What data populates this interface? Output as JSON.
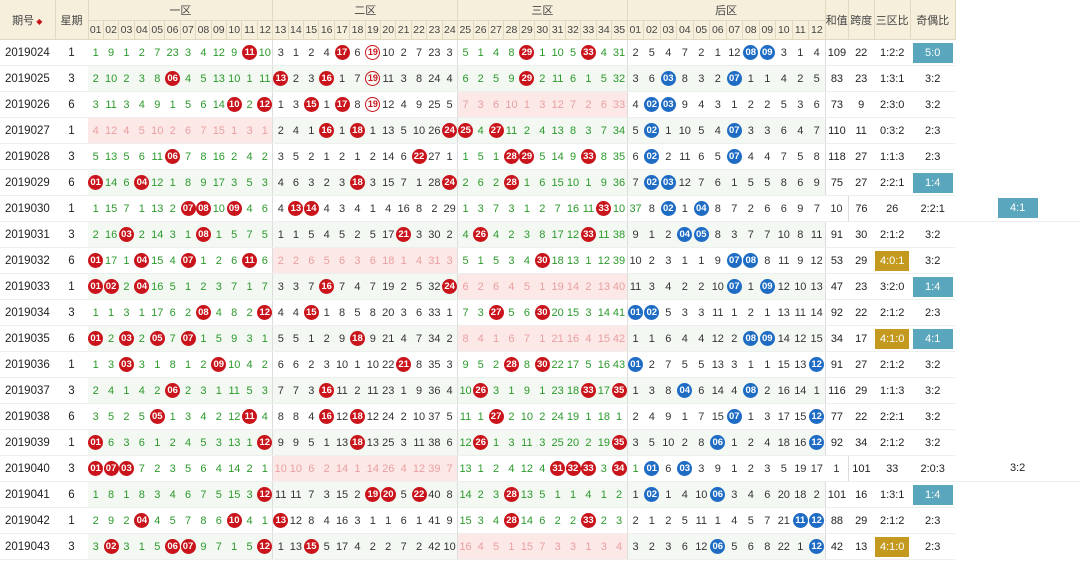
{
  "headers": {
    "period": "期号",
    "week": "星期",
    "zone1": "一区",
    "zone2": "二区",
    "zone3": "三区",
    "back": "后区",
    "sum": "和值",
    "span": "跨度",
    "zone_ratio": "三区比",
    "odd_even": "奇偶比"
  },
  "front_numbers": [
    "01",
    "02",
    "03",
    "04",
    "05",
    "06",
    "07",
    "08",
    "09",
    "10",
    "11",
    "12",
    "13",
    "14",
    "15",
    "16",
    "17",
    "18",
    "19",
    "20",
    "21",
    "22",
    "23",
    "24",
    "25",
    "26",
    "27",
    "28",
    "29",
    "30",
    "31",
    "32",
    "33",
    "34",
    "35"
  ],
  "back_numbers": [
    "01",
    "02",
    "03",
    "04",
    "05",
    "06",
    "07",
    "08",
    "09",
    "10",
    "11",
    "12"
  ],
  "colors": {
    "red_ball": "#c9141b",
    "blue_ball": "#1f6cc4",
    "gold_badge": "#c39a1e",
    "teal_badge": "#5aa6bc",
    "header_bg": "#f6efdc"
  },
  "rows": [
    {
      "period": "2019024",
      "week": "1",
      "front": "1 9 1 2 7 23 3 4 12 9 R11 10 3 1 2 4 R17 6 O19 10 2 7 23 3 5 1 4 8 R29 1 10 5 R33 4 31",
      "back": "2 5 4 7 2 1 12 B08 B09 3 1 4",
      "sum": "109",
      "span": "22",
      "ratio": "1:2:2",
      "oe": "5:0",
      "oe_badge": "teal"
    },
    {
      "period": "2019025",
      "week": "3",
      "front": "2 10 2 3 8 R06 4 5 13 10 1 11 R13 2 3 R16 1 7 O19 11 3 8 24 4 6 2 5 9 R29 2 11 6 1 5 32",
      "back": "3 6 B03 8 3 2 B07 1 1 4 2 5",
      "sum": "83",
      "span": "23",
      "ratio": "1:3:1",
      "oe": "3:2"
    },
    {
      "period": "2019026",
      "week": "6",
      "front": "3 11 3 4 9 1 5 6 14 R10 2 R12 1 3 R15 1 R17 8 O19 12 4 9 25 5 7 3 6 10 1 3 12 7 2 6 33",
      "back": "4 B02 B03 9 4 3 1 2 2 5 3 6",
      "sum": "73",
      "span": "9",
      "ratio": "2:3:0",
      "oe": "3:2",
      "fade": 3
    },
    {
      "period": "2019027",
      "week": "1",
      "front": "4 12 4 5 10 2 6 7 15 1 3 1 2 4 1 R16 1 R18 1 13 5 10 26 R24 R25 4 R27 11 2 4 13 8 3 7 34",
      "back": "5 B02 1 10 5 4 B07 3 3 6 4 7",
      "sum": "110",
      "span": "11",
      "ratio": "0:3:2",
      "oe": "2:3",
      "fade": 1
    },
    {
      "period": "2019028",
      "week": "3",
      "front": "5 13 5 6 11 R06 7 8 16 2 4 2 3 5 2 1 2 1 2 14 6 R22 27 1 1 5 1 R28 R29 5 14 9 R33 8 35",
      "back": "6 B02 2 11 6 5 B07 4 4 7 5 8",
      "sum": "118",
      "span": "27",
      "ratio": "1:1:3",
      "oe": "2:3"
    },
    {
      "period": "2019029",
      "week": "6",
      "front": "R01 14 6 R04 12 1 8 9 17 3 5 3 4 6 3 2 3 R18 3 15 7 1 28 R24 2 6 2 R28 1 6 15 10 1 9 36",
      "back": "7 B02 B03 12 7 6 1 5 5 8 6 9",
      "sum": "75",
      "span": "27",
      "ratio": "2:2:1",
      "oe": "1:4",
      "oe_badge": "teal"
    },
    {
      "period": "2019030",
      "week": "1",
      "front": "1 15 7 1 13 2 R07 R08 10 R09 4 6 4 R13 R14 4 3 4 1 4 16 8 2 29 1 3 7 3 1 2 7 16 11 R33 10 37",
      "back": "8 B02 1 B04 8 7 2 6 6 9 7 10",
      "sum": "76",
      "span": "26",
      "ratio": "2:2:1",
      "oe": "4:1",
      "oe_badge": "teal"
    },
    {
      "period": "2019031",
      "week": "3",
      "front": "2 16 R03 2 14 3 1 R08 1 5 7 5 1 1 5 4 5 2 5 17 R21 3 30 2 4 R26 4 2 3 8 17 12 R33 11 38",
      "back": "9 1 2 B04 B05 8 3 7 7 10 8 11",
      "sum": "91",
      "span": "30",
      "ratio": "2:1:2",
      "oe": "3:2"
    },
    {
      "period": "2019032",
      "week": "6",
      "front": "R01 17 1 R04 15 4 R07 1 2 6 R11 6 2 2 6 5 6 3 6 18 1 4 31 3 5 1 5 3 4 R30 18 13 1 12 39",
      "back": "10 2 3 1 1 9 B07 B08 8 11 9 12",
      "sum": "53",
      "span": "29",
      "ratio": "4:0:1",
      "ratio_badge": "gold",
      "oe": "3:2",
      "fade": 2
    },
    {
      "period": "2019033",
      "week": "1",
      "front": "R01 R02 2 R04 16 5 1 2 3 7 1 7 3 3 7 R16 7 4 7 19 2 5 32 R24 6 2 6 4 5 1 19 14 2 13 40",
      "back": "11 3 4 2 2 10 B07 1 B09 12 10 13",
      "sum": "47",
      "span": "23",
      "ratio": "3:2:0",
      "oe": "1:4",
      "oe_badge": "teal",
      "fade": 3
    },
    {
      "period": "2019034",
      "week": "3",
      "front": "1 1 3 1 17 6 2 R08 4 8 2 R12 4 4 R15 1 8 5 8 20 3 6 33 1 7 3 R27 5 6 R30 20 15 3 14 41",
      "back": "B01 B02 5 3 3 11 1 2 1 13 11 14",
      "sum": "92",
      "span": "22",
      "ratio": "2:1:2",
      "oe": "2:3"
    },
    {
      "period": "2019035",
      "week": "6",
      "front": "R01 2 R03 2 R05 7 R07 1 5 9 3 1 5 5 1 2 9 R18 9 21 4 7 34 2 8 4 1 6 7 1 21 16 4 15 42",
      "back": "1 1 6 4 4 12 2 B08 B09 14 12 15",
      "sum": "34",
      "span": "17",
      "ratio": "4:1:0",
      "ratio_badge": "gold",
      "oe": "4:1",
      "oe_badge": "teal",
      "fade": 3
    },
    {
      "period": "2019036",
      "week": "1",
      "front": "1 3 R03 3 1 8 1 2 R09 10 4 2 6 6 2 3 10 1 10 22 R21 8 35 3 9 5 2 R28 8 R30 22 17 5 16 43",
      "back": "B01 2 7 5 5 13 3 1 1 15 13 B12",
      "sum": "91",
      "span": "27",
      "ratio": "2:1:2",
      "oe": "3:2"
    },
    {
      "period": "2019037",
      "week": "3",
      "front": "2 4 1 4 2 R06 2 3 1 11 5 3 7 7 3 R16 11 2 11 23 1 9 36 4 10 R26 3 1 9 1 23 18 R33 17 R35",
      "back": "1 3 8 B04 6 14 4 B08 2 16 14 1",
      "sum": "116",
      "span": "29",
      "ratio": "1:1:3",
      "oe": "3:2"
    },
    {
      "period": "2019038",
      "week": "6",
      "front": "3 5 2 5 R05 1 3 4 2 12 R11 4 8 8 4 R16 12 R18 12 24 2 10 37 5 11 1 R27 2 10 2 24 19 1 18 1",
      "back": "2 4 9 1 7 15 B07 1 3 17 15 B12",
      "sum": "77",
      "span": "22",
      "ratio": "2:2:1",
      "oe": "3:2"
    },
    {
      "period": "2019039",
      "week": "1",
      "front": "R01 6 3 6 1 2 4 5 3 13 1 R12 9 9 5 1 13 R18 13 25 3 11 38 6 12 R26 1 3 11 3 25 20 2 19 R35",
      "back": "3 5 10 2 8 B06 1 2 4 18 16 B12",
      "sum": "92",
      "span": "34",
      "ratio": "2:1:2",
      "oe": "3:2"
    },
    {
      "period": "2019040",
      "week": "3",
      "front": "R01 R07 R03 7 2 3 5 6 4 14 2 1 10 10 6 2 14 1 14 26 4 12 39 7 13 1 2 4 12 4 R31 R32 R33 3 R34 1",
      "back": "B01 6 B03 3 9 1 2 3 5 19 17 1",
      "sum": "101",
      "span": "33",
      "ratio": "2:0:3",
      "oe": "3:2",
      "fade": 2
    },
    {
      "period": "2019041",
      "week": "6",
      "front": "1 8 1 8 3 4 6 7 5 15 3 R12 11 11 7 3 15 2 R19 R20 5 R22 40 8 14 2 3 R28 13 5 1 1 4 1 2",
      "back": "1 B02 1 4 10 B06 3 4 6 20 18 2",
      "sum": "101",
      "span": "16",
      "ratio": "1:3:1",
      "oe": "1:4",
      "oe_badge": "teal"
    },
    {
      "period": "2019042",
      "week": "1",
      "front": "2 9 2 R04 4 5 7 8 6 R10 4 1 R13 12 8 4 16 3 1 1 6 1 41 9 15 3 4 R28 14 6 2 2 R33 2 3",
      "back": "2 1 2 5 11 1 4 5 7 21 B11 B12",
      "sum": "88",
      "span": "29",
      "ratio": "2:1:2",
      "oe": "2:3"
    },
    {
      "period": "2019043",
      "week": "3",
      "front": "3 R02 3 1 5 R06 R07 9 7 1 5 R12 1 13 R15 5 17 4 2 2 7 2 42 10 16 4 5 1 15 7 3 3 1 3 4",
      "back": "3 2 3 6 12 B06 5 6 8 22 1 B12",
      "sum": "42",
      "span": "13",
      "ratio": "4:1:0",
      "ratio_badge": "gold",
      "oe": "2:3",
      "fade": 3
    }
  ]
}
